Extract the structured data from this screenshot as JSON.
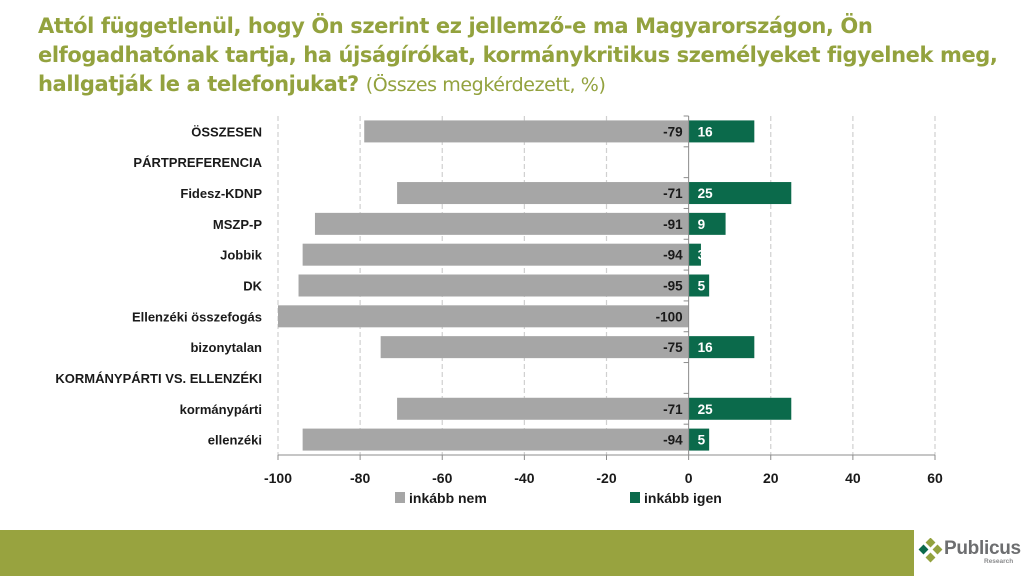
{
  "title": {
    "main": "Attól függetlenül, hogy Ön szerint ez jellemző-e ma Magyarországon, Ön elfogadhatónak tartja, ha újságírókat, kormánykritikus személyeket figyelnek meg, hallgatják le a telefonjukat?",
    "sub": "(Összes megkérdezett, %)"
  },
  "colors": {
    "title": "#93a23e",
    "nem": "#a6a6a6",
    "igen": "#0b6a4b",
    "footer": "#98a33f",
    "grid": "#d0d0d0",
    "axis": "#8c8c8c"
  },
  "chart_data": {
    "type": "bar",
    "orientation": "horizontal",
    "stacked": "diverging",
    "title": "Attól függetlenül, hogy Ön szerint ez jellemző-e ma Magyarországon, Ön elfogadhatónak tartja, ha újságírókat, kormánykritikus személyeket figyelnek meg, hallgatják le a telefonjukat? (Összes megkérdezett, %)",
    "xlabel": "",
    "ylabel": "",
    "xlim": [
      -100,
      60
    ],
    "xticks": [
      -100,
      -80,
      -60,
      -40,
      -20,
      0,
      20,
      40,
      60
    ],
    "grid": true,
    "legend_position": "bottom",
    "categories": [
      "ÖSSZESEN",
      "PÁRTPREFERENCIA",
      "Fidesz-KDNP",
      "MSZP-P",
      "Jobbik",
      "DK",
      "Ellenzéki összefogás",
      "bizonytalan",
      "KORMÁNYPÁRTI VS. ELLENZÉKI",
      "kormánypárti",
      "ellenzéki"
    ],
    "series": [
      {
        "name": "inkább nem",
        "color": "#a6a6a6",
        "values": [
          -79,
          null,
          -71,
          -91,
          -94,
          -95,
          -100,
          -75,
          null,
          -71,
          -94
        ]
      },
      {
        "name": "inkább igen",
        "color": "#0b6a4b",
        "values": [
          16,
          null,
          25,
          9,
          3,
          5,
          null,
          16,
          null,
          25,
          5
        ]
      }
    ]
  },
  "logo": {
    "name": "Publicus",
    "sub": "Research"
  }
}
